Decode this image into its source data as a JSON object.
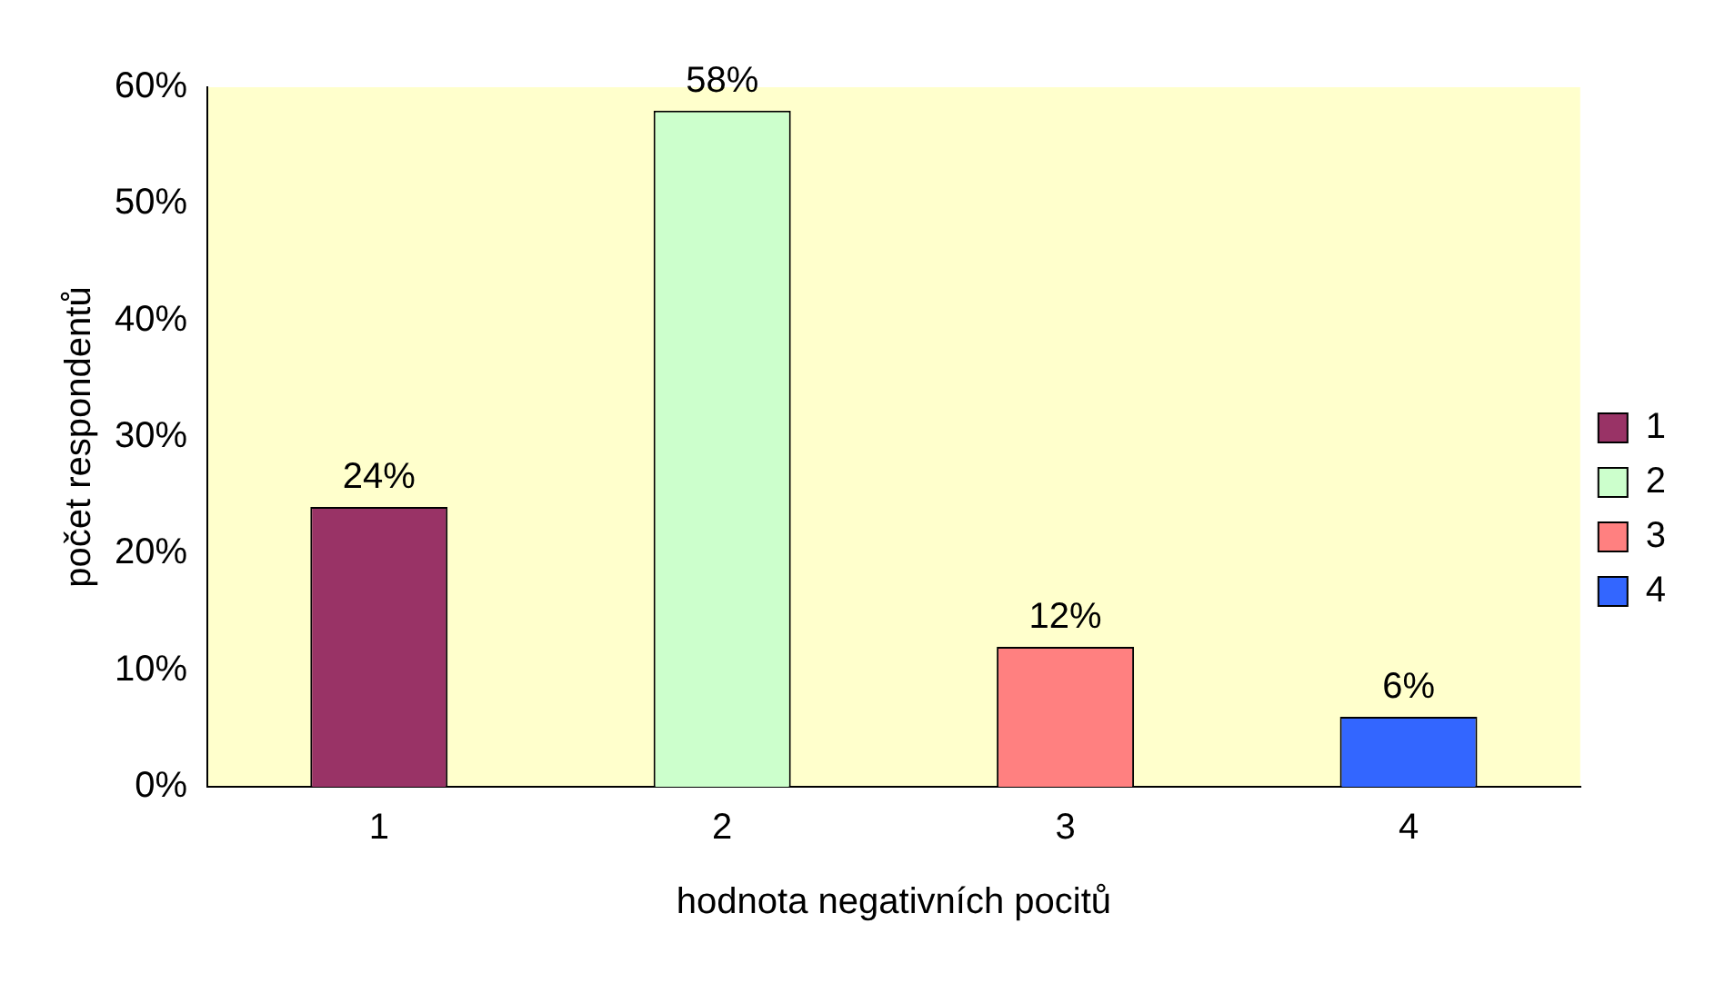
{
  "chart_data": {
    "type": "bar",
    "xlabel": "hodnota negativních pocitů",
    "ylabel": "počet respondentů",
    "categories": [
      "1",
      "2",
      "3",
      "4"
    ],
    "series": [
      {
        "name": "1",
        "color": "#993366",
        "values": [
          24,
          null,
          null,
          null
        ],
        "value_labels": [
          "24%",
          null,
          null,
          null
        ]
      },
      {
        "name": "2",
        "color": "#ccffcc",
        "values": [
          null,
          58,
          null,
          null
        ],
        "value_labels": [
          null,
          "58%",
          null,
          null
        ]
      },
      {
        "name": "3",
        "color": "#ff8080",
        "values": [
          null,
          null,
          12,
          null
        ],
        "value_labels": [
          null,
          null,
          "12%",
          null
        ]
      },
      {
        "name": "4",
        "color": "#3366ff",
        "values": [
          null,
          null,
          null,
          6
        ],
        "value_labels": [
          null,
          null,
          null,
          "6%"
        ]
      }
    ],
    "ylim": [
      0,
      60
    ],
    "yticks": [
      {
        "value": 0,
        "label": "0%"
      },
      {
        "value": 10,
        "label": "10%"
      },
      {
        "value": 20,
        "label": "20%"
      },
      {
        "value": 30,
        "label": "30%"
      },
      {
        "value": 40,
        "label": "40%"
      },
      {
        "value": 50,
        "label": "50%"
      },
      {
        "value": 60,
        "label": "60%"
      }
    ],
    "grid": false,
    "legend": "right"
  }
}
